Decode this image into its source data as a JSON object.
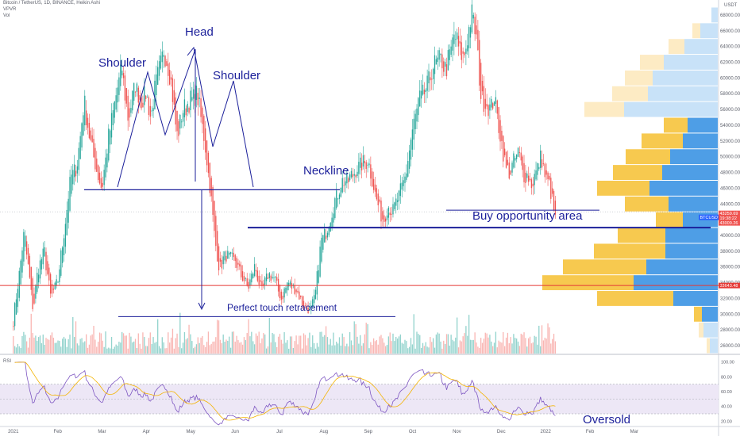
{
  "header": {
    "symbol_line": "Bitcoin / TetherUS, 1D, BINANCE, Heikin Ashi",
    "vpvr_label": "VPVR",
    "vol_label": "Vol"
  },
  "chart_data": {
    "type": "candlestick",
    "currency_label": "USDT",
    "price_ticks": [
      "68000.00",
      "66000.00",
      "64000.00",
      "62000.00",
      "60000.00",
      "58000.00",
      "56000.00",
      "54000.00",
      "52000.00",
      "50000.00",
      "48000.00",
      "46000.00",
      "44000.00",
      "42000.00",
      "40000.00",
      "38000.00",
      "36000.00",
      "34000.00",
      "32000.00",
      "30000.00",
      "28000.00",
      "26000.00"
    ],
    "price_range": [
      25000,
      69500
    ],
    "date_ticks": [
      "2021",
      "Feb",
      "Mar",
      "Apr",
      "May",
      "Jun",
      "Jul",
      "Aug",
      "Sep",
      "Oct",
      "Nov",
      "Dec",
      "2022",
      "Feb",
      "Mar"
    ],
    "date_tick_months": [
      0,
      1,
      2,
      3,
      4,
      5,
      6,
      7,
      8,
      9,
      10,
      11,
      12,
      13,
      14
    ],
    "month_span": [
      -0.3,
      15.9
    ],
    "price_anchors": [
      [
        0.0,
        29000
      ],
      [
        0.1,
        33000
      ],
      [
        0.25,
        40000
      ],
      [
        0.35,
        36000
      ],
      [
        0.45,
        31000
      ],
      [
        0.55,
        35000
      ],
      [
        0.7,
        38000
      ],
      [
        0.85,
        32500
      ],
      [
        1.0,
        34000
      ],
      [
        1.15,
        40000
      ],
      [
        1.3,
        47000
      ],
      [
        1.45,
        49000
      ],
      [
        1.6,
        56500
      ],
      [
        1.75,
        52000
      ],
      [
        1.9,
        48000
      ],
      [
        2.0,
        46000
      ],
      [
        2.15,
        52000
      ],
      [
        2.3,
        57000
      ],
      [
        2.45,
        61000
      ],
      [
        2.6,
        55000
      ],
      [
        2.75,
        59000
      ],
      [
        2.9,
        57000
      ],
      [
        3.0,
        58000
      ],
      [
        3.1,
        55000
      ],
      [
        3.25,
        60000
      ],
      [
        3.4,
        63500
      ],
      [
        3.55,
        60000
      ],
      [
        3.7,
        53000
      ],
      [
        3.85,
        56000
      ],
      [
        4.0,
        57000
      ],
      [
        4.15,
        58000
      ],
      [
        4.3,
        53000
      ],
      [
        4.45,
        46000
      ],
      [
        4.55,
        40000
      ],
      [
        4.65,
        36000
      ],
      [
        4.8,
        37500
      ],
      [
        5.0,
        37000
      ],
      [
        5.15,
        35000
      ],
      [
        5.3,
        33500
      ],
      [
        5.45,
        36000
      ],
      [
        5.6,
        33000
      ],
      [
        5.75,
        35000
      ],
      [
        5.9,
        34500
      ],
      [
        6.05,
        32000
      ],
      [
        6.2,
        34000
      ],
      [
        6.4,
        33000
      ],
      [
        6.55,
        31000
      ],
      [
        6.7,
        30500
      ],
      [
        6.8,
        32000
      ],
      [
        6.95,
        39000
      ],
      [
        7.1,
        41000
      ],
      [
        7.25,
        44000
      ],
      [
        7.4,
        46500
      ],
      [
        7.55,
        47000
      ],
      [
        7.7,
        48000
      ],
      [
        7.85,
        49000
      ],
      [
        8.0,
        49500
      ],
      [
        8.1,
        47000
      ],
      [
        8.2,
        44500
      ],
      [
        8.35,
        42000
      ],
      [
        8.45,
        43500
      ],
      [
        8.55,
        43000
      ],
      [
        8.7,
        45000
      ],
      [
        8.85,
        47500
      ],
      [
        9.0,
        53000
      ],
      [
        9.15,
        57000
      ],
      [
        9.3,
        58500
      ],
      [
        9.45,
        61000
      ],
      [
        9.55,
        62000
      ],
      [
        9.65,
        62500
      ],
      [
        9.75,
        61000
      ],
      [
        9.85,
        63000
      ],
      [
        9.95,
        65500
      ],
      [
        10.05,
        64000
      ],
      [
        10.15,
        62500
      ],
      [
        10.25,
        65000
      ],
      [
        10.35,
        68000
      ],
      [
        10.45,
        65000
      ],
      [
        10.55,
        58000
      ],
      [
        10.65,
        57000
      ],
      [
        10.75,
        56000
      ],
      [
        10.85,
        57500
      ],
      [
        11.0,
        52500
      ],
      [
        11.1,
        49000
      ],
      [
        11.2,
        48000
      ],
      [
        11.3,
        49500
      ],
      [
        11.4,
        50500
      ],
      [
        11.5,
        48000
      ],
      [
        11.6,
        47500
      ],
      [
        11.7,
        46500
      ],
      [
        11.8,
        48000
      ],
      [
        11.9,
        50000
      ],
      [
        12.0,
        47500
      ],
      [
        12.1,
        46500
      ],
      [
        12.22,
        42500
      ]
    ],
    "volume_profile_note": "VPVR horizontal histogram on right side",
    "volume_profile": [
      {
        "from": 67000,
        "to": 69000,
        "up": 0,
        "down": 8
      },
      {
        "from": 65000,
        "to": 67000,
        "up": 10,
        "down": 22
      },
      {
        "from": 63000,
        "to": 65000,
        "up": 20,
        "down": 42
      },
      {
        "from": 61000,
        "to": 63000,
        "up": 30,
        "down": 68
      },
      {
        "from": 59000,
        "to": 61000,
        "up": 35,
        "down": 82
      },
      {
        "from": 57000,
        "to": 59000,
        "up": 45,
        "down": 88
      },
      {
        "from": 55000,
        "to": 57000,
        "up": 50,
        "down": 118
      },
      {
        "from": 53000,
        "to": 55000,
        "up": 30,
        "down": 38
      },
      {
        "from": 51000,
        "to": 53000,
        "up": 52,
        "down": 44
      },
      {
        "from": 49000,
        "to": 51000,
        "up": 56,
        "down": 60
      },
      {
        "from": 47000,
        "to": 49000,
        "up": 62,
        "down": 70
      },
      {
        "from": 45000,
        "to": 47000,
        "up": 66,
        "down": 86
      },
      {
        "from": 43000,
        "to": 45000,
        "up": 55,
        "down": 62
      },
      {
        "from": 41000,
        "to": 43000,
        "up": 34,
        "down": 44
      },
      {
        "from": 39000,
        "to": 41000,
        "up": 60,
        "down": 66
      },
      {
        "from": 37000,
        "to": 39000,
        "up": 90,
        "down": 66
      },
      {
        "from": 35000,
        "to": 37000,
        "up": 105,
        "down": 90
      },
      {
        "from": 33000,
        "to": 35000,
        "up": 115,
        "down": 106
      },
      {
        "from": 31000,
        "to": 33000,
        "up": 96,
        "down": 56
      },
      {
        "from": 29000,
        "to": 31000,
        "up": 10,
        "down": 20
      },
      {
        "from": 27000,
        "to": 29000,
        "up": 6,
        "down": 18
      },
      {
        "from": 25000,
        "to": 27000,
        "up": 4,
        "down": 10
      }
    ],
    "price_labels": [
      {
        "text": "BTCUSDT",
        "price": 42300
      },
      {
        "text": "43259.69",
        "price": 42800
      },
      {
        "text": "19:38:22",
        "price": 42200
      },
      {
        "text": "43009.26",
        "price": 41600
      },
      {
        "text": "33643.48",
        "price": 33643.48
      }
    ],
    "rsi_ticks": [
      "100.00",
      "80.00",
      "60.00",
      "40.00",
      "20.00"
    ],
    "rsi_range": [
      15,
      105
    ],
    "rsi_band": [
      30,
      70
    ],
    "annotations": {
      "head": "Head",
      "shoulder_left": "Shoulder",
      "shoulder_right": "Shoulder",
      "neckline": "Neckline",
      "buy_area": "Buy opportunity area",
      "retracement": "Perfect touch retracement",
      "oversold": "Oversold",
      "rsi_label": "RSI"
    },
    "levels": {
      "neckline_price": 45800,
      "buy_price": 41000,
      "retrace_price": 29700,
      "red_line_price": 33643.48,
      "gray_price": 43000
    },
    "colors": {
      "up": "#26a69a",
      "down": "#ef5350",
      "up_vol": "#80cbc4",
      "down_vol": "#f8a9a6",
      "vp_up": "#f7c94f",
      "vp_down": "#4e9ee6",
      "vp_up_light": "#fdebc4",
      "vp_down_light": "#c8e2f8",
      "annot": "#1b1f9a",
      "red_line": "#e53935",
      "rsi_line": "#7e57c2",
      "rsi_ma": "#f4b400",
      "rsi_band": "#ede7f6"
    }
  }
}
